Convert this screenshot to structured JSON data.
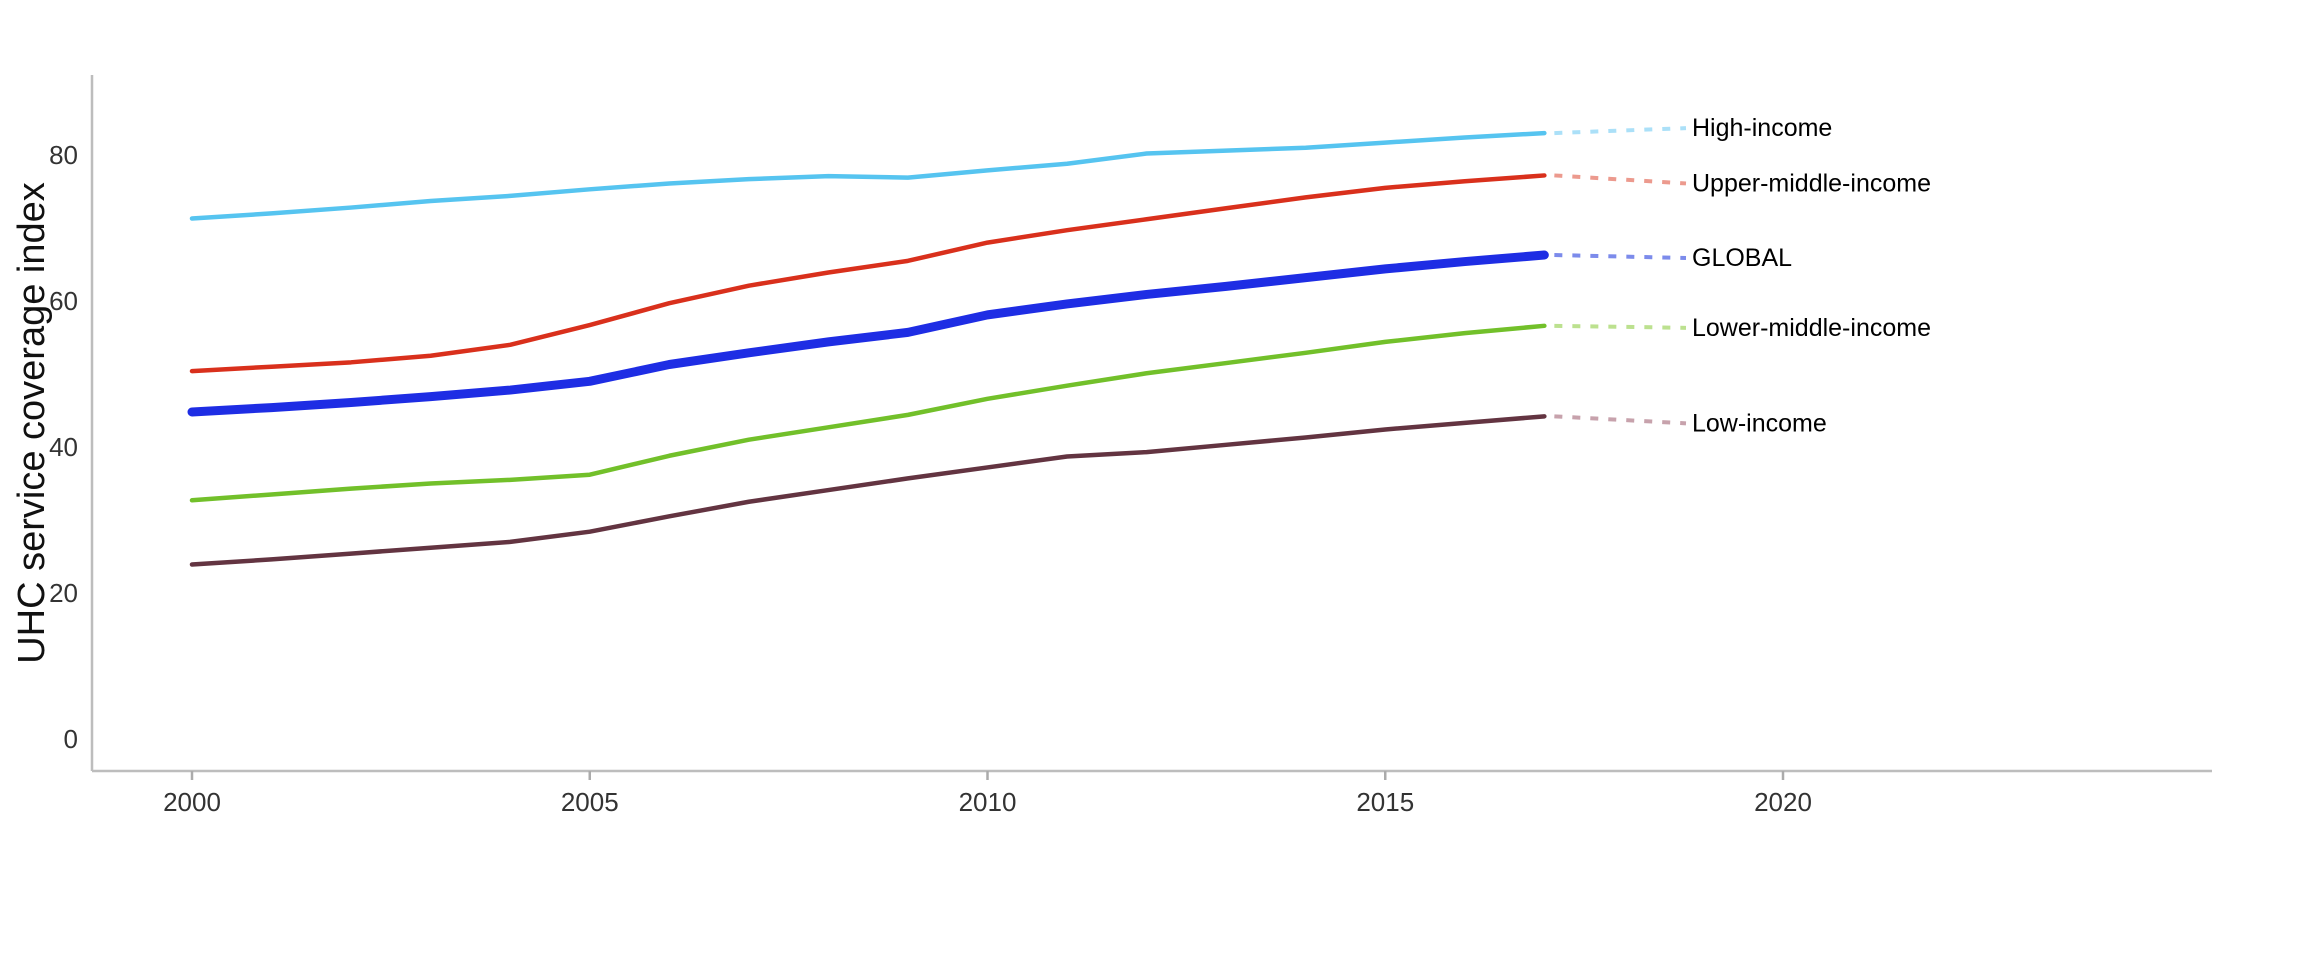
{
  "chart_data": {
    "type": "line",
    "title": "",
    "ylabel": "UHC service coverage index",
    "xlabel": "",
    "grid": false,
    "legend_position": "right-end-of-line-labels",
    "x": [
      2000,
      2001,
      2002,
      2003,
      2004,
      2005,
      2006,
      2007,
      2008,
      2009,
      2010,
      2011,
      2012,
      2013,
      2014,
      2015,
      2016,
      2017
    ],
    "x_ticks": [
      2000,
      2005,
      2010,
      2015,
      2020
    ],
    "y_ticks": [
      0,
      20,
      40,
      60,
      80
    ],
    "xlim": [
      1998.7,
      2025.4
    ],
    "ylim": [
      0,
      95
    ],
    "axis_color": "#bdbdbd",
    "tick_color": "#ababab",
    "tick_label_color": "#333333",
    "label_color": "#000000",
    "series": [
      {
        "name": "High-income",
        "color": "#56c4f0",
        "leader_color": "#abe0f8",
        "width": 4.5,
        "label_dy": -5,
        "values": [
          71.3,
          72.0,
          72.8,
          73.7,
          74.4,
          75.3,
          76.1,
          76.7,
          77.1,
          76.9,
          77.9,
          78.8,
          80.2,
          80.6,
          81.0,
          81.7,
          82.4,
          83.0
        ]
      },
      {
        "name": "Upper-middle-income",
        "color": "#d9301c",
        "leader_color": "#ec9a8e",
        "width": 4.5,
        "label_dy": 8,
        "values": [
          50.4,
          51.0,
          51.6,
          52.5,
          54.0,
          56.7,
          59.7,
          62.1,
          63.9,
          65.5,
          68.0,
          69.7,
          71.2,
          72.7,
          74.2,
          75.5,
          76.4,
          77.2
        ]
      },
      {
        "name": "GLOBAL",
        "color": "#1e2de4",
        "leader_color": "#7c8beb",
        "width": 9,
        "label_dy": 3,
        "values": [
          44.8,
          45.4,
          46.1,
          46.9,
          47.8,
          49.0,
          51.3,
          52.9,
          54.4,
          55.7,
          58.1,
          59.6,
          60.9,
          62.0,
          63.2,
          64.4,
          65.4,
          66.3
        ]
      },
      {
        "name": "Lower-middle-income",
        "color": "#72c02a",
        "leader_color": "#bce18f",
        "width": 4.5,
        "label_dy": 2,
        "values": [
          32.7,
          33.5,
          34.3,
          35.0,
          35.5,
          36.2,
          38.8,
          41.0,
          42.7,
          44.4,
          46.6,
          48.4,
          50.1,
          51.5,
          52.9,
          54.4,
          55.6,
          56.6
        ]
      },
      {
        "name": "Low-income",
        "color": "#633441",
        "leader_color": "#c7a2ac",
        "width": 4.5,
        "label_dy": 7,
        "values": [
          23.9,
          24.6,
          25.4,
          26.2,
          27.0,
          28.4,
          30.5,
          32.5,
          34.1,
          35.7,
          37.2,
          38.7,
          39.3,
          40.3,
          41.3,
          42.4,
          43.3,
          44.2
        ]
      }
    ]
  }
}
